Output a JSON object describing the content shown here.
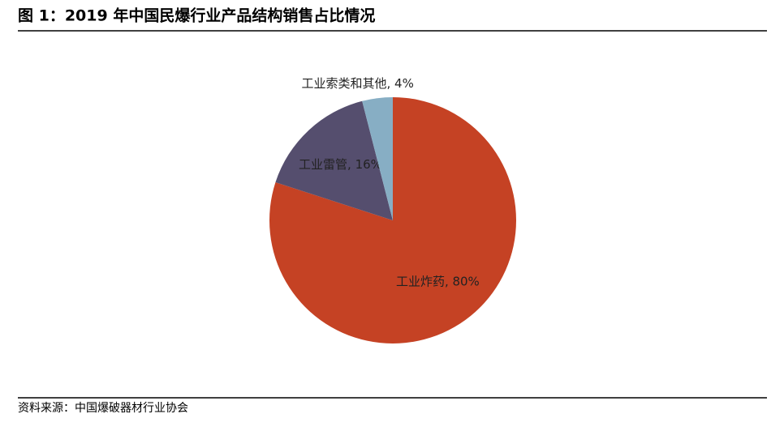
{
  "title": "图 1：2019 年中国民爆行业产品结构销售占比情况",
  "chart_data": {
    "type": "pie",
    "values": [
      80,
      16,
      4
    ],
    "value_labels": [
      "工业炸药, 80%",
      "工业雷管, 16%",
      "工业索类和其他, 4%"
    ],
    "colors": [
      "#c54224",
      "#554e6e",
      "#87aec4"
    ]
  },
  "source": "资料来源：中国爆破器材行业协会"
}
